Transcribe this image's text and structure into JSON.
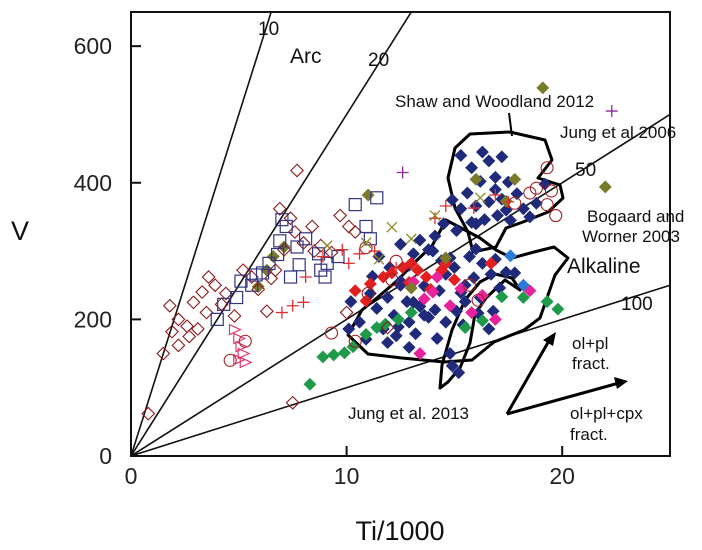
{
  "chart_data": {
    "type": "scatter",
    "title": "",
    "xlabel": "Ti/1000",
    "ylabel": "V",
    "xlim": [
      0,
      25
    ],
    "ylim": [
      0,
      650
    ],
    "x_ticks": [
      0,
      10,
      20
    ],
    "y_ticks": [
      0,
      200,
      400,
      600
    ],
    "grid": false,
    "ratio_lines": [
      {
        "label": "10",
        "ratio": 10
      },
      {
        "label": "20",
        "ratio": 20
      },
      {
        "label": "50",
        "ratio": 50
      },
      {
        "label": "100",
        "ratio": 100
      }
    ],
    "field_labels": [
      "Arc",
      "Alkaline"
    ],
    "annotations": [
      "Shaw and Woodland 2012",
      "Jung et al 2006",
      "Bogaard and",
      "Worner 2003",
      "Jung et al. 2013"
    ],
    "vectors": [
      {
        "label_lines": [
          "ol+pl",
          "fract."
        ]
      },
      {
        "label_lines": [
          "ol+pl+cpx",
          "fract."
        ]
      }
    ],
    "series": [
      {
        "marker": "diamond-filled",
        "color": "#1f2a7a",
        "points": [
          [
            14.5,
            340
          ],
          [
            15.1,
            330
          ],
          [
            15.8,
            342
          ],
          [
            16.4,
            346
          ],
          [
            17.0,
            352
          ],
          [
            17.6,
            345
          ],
          [
            18.2,
            362
          ],
          [
            18.8,
            370
          ],
          [
            19.2,
            398
          ],
          [
            15.3,
            362
          ],
          [
            16.0,
            366
          ],
          [
            16.6,
            372
          ],
          [
            17.2,
            376
          ],
          [
            17.9,
            384
          ],
          [
            16.2,
            402
          ],
          [
            16.9,
            408
          ],
          [
            17.5,
            401
          ],
          [
            16.6,
            432
          ],
          [
            17.2,
            438
          ],
          [
            15.8,
            422
          ],
          [
            15.3,
            440
          ],
          [
            14.9,
            375
          ],
          [
            15.6,
            385
          ],
          [
            16.9,
            390
          ],
          [
            16.3,
            445
          ],
          [
            17.4,
            360
          ],
          [
            16.0,
            340
          ],
          [
            18.5,
            350
          ],
          [
            12.5,
            310
          ],
          [
            13.1,
            296
          ],
          [
            13.8,
            302
          ],
          [
            14.4,
            286
          ],
          [
            15.0,
            276
          ],
          [
            15.7,
            292
          ],
          [
            16.3,
            282
          ],
          [
            13.4,
            316
          ],
          [
            14.1,
            322
          ],
          [
            12.9,
            279
          ],
          [
            11.5,
            292
          ],
          [
            12.0,
            276
          ],
          [
            14.6,
            266
          ],
          [
            15.9,
            261
          ],
          [
            16.7,
            266
          ],
          [
            17.4,
            269
          ],
          [
            12.5,
            256
          ],
          [
            13.6,
            249
          ],
          [
            14.3,
            242
          ],
          [
            15.3,
            239
          ],
          [
            16.2,
            232
          ],
          [
            17.1,
            246
          ],
          [
            11.1,
            238
          ],
          [
            11.9,
            232
          ],
          [
            12.8,
            226
          ],
          [
            13.4,
            219
          ],
          [
            14.1,
            214
          ],
          [
            15.1,
            212
          ],
          [
            16.1,
            209
          ],
          [
            15.4,
            192
          ],
          [
            16.6,
            186
          ],
          [
            14.6,
            196
          ],
          [
            13.8,
            203
          ],
          [
            12.9,
            196
          ],
          [
            12.2,
            206
          ],
          [
            11.4,
            216
          ],
          [
            10.6,
            196
          ],
          [
            10.1,
            186
          ],
          [
            11.7,
            186
          ],
          [
            12.3,
            176
          ],
          [
            13.2,
            179
          ],
          [
            14.2,
            172
          ],
          [
            10.9,
            171
          ],
          [
            11.9,
            166
          ],
          [
            12.9,
            159
          ],
          [
            10.2,
            226
          ],
          [
            14.8,
            150
          ],
          [
            14.9,
            132
          ],
          [
            15.2,
            122
          ],
          [
            12.5,
            250
          ],
          [
            13.1,
            225
          ],
          [
            16.8,
            212
          ],
          [
            11.2,
            263
          ],
          [
            15.5,
            226
          ],
          [
            14.0,
            300
          ],
          [
            15.5,
            250
          ],
          [
            16.9,
            288
          ],
          [
            13.6,
            206
          ],
          [
            17.8,
            268
          ],
          [
            12.4,
            189
          ],
          [
            14.8,
            290
          ],
          [
            16.0,
            303
          ]
        ]
      },
      {
        "marker": "diamond-filled",
        "color": "#e22020",
        "points": [
          [
            10.4,
            242
          ],
          [
            11.1,
            252
          ],
          [
            11.7,
            262
          ],
          [
            12.1,
            268
          ],
          [
            12.6,
            276
          ],
          [
            13.0,
            282
          ],
          [
            13.3,
            272
          ],
          [
            13.7,
            262
          ],
          [
            14.4,
            272
          ],
          [
            15.0,
            258
          ],
          [
            12.9,
            254
          ],
          [
            13.9,
            244
          ],
          [
            14.6,
            282
          ],
          [
            16.7,
            282
          ],
          [
            10.9,
            227
          ]
        ]
      },
      {
        "marker": "diamond-filled",
        "color": "#e8229a",
        "points": [
          [
            13.1,
            255
          ],
          [
            13.6,
            230
          ],
          [
            14.0,
            240
          ],
          [
            14.2,
            262
          ],
          [
            14.8,
            220
          ],
          [
            15.3,
            245
          ],
          [
            15.8,
            210
          ],
          [
            16.3,
            235
          ],
          [
            16.9,
            200
          ],
          [
            18.5,
            242
          ],
          [
            13.4,
            150
          ]
        ]
      },
      {
        "marker": "diamond-filled",
        "color": "#1f9a4a",
        "points": [
          [
            8.3,
            105
          ],
          [
            8.9,
            145
          ],
          [
            9.4,
            148
          ],
          [
            9.9,
            151
          ],
          [
            10.3,
            160
          ],
          [
            10.9,
            178
          ],
          [
            11.4,
            188
          ],
          [
            11.8,
            193
          ],
          [
            12.4,
            200
          ],
          [
            13.0,
            210
          ],
          [
            17.2,
            233
          ],
          [
            18.2,
            232
          ],
          [
            19.3,
            226
          ],
          [
            19.8,
            215
          ],
          [
            16.3,
            198
          ],
          [
            15.5,
            188
          ]
        ]
      },
      {
        "marker": "diamond-filled",
        "color": "#7a7a2a",
        "points": [
          [
            5.9,
            248
          ],
          [
            6.3,
            272
          ],
          [
            6.6,
            292
          ],
          [
            7.1,
            306
          ],
          [
            11.0,
            382
          ],
          [
            13.0,
            246
          ],
          [
            14.6,
            290
          ],
          [
            17.4,
            373
          ],
          [
            19.1,
            539
          ],
          [
            22.0,
            394
          ],
          [
            16.0,
            405
          ],
          [
            17.8,
            405
          ]
        ]
      },
      {
        "marker": "diamond-filled",
        "color": "#2c7bd6",
        "points": [
          [
            17.6,
            293
          ],
          [
            18.2,
            250
          ]
        ]
      },
      {
        "marker": "diamond-open",
        "color": "#8a1a1a",
        "points": [
          [
            0.8,
            62
          ],
          [
            1.5,
            150
          ],
          [
            1.9,
            182
          ],
          [
            2.2,
            200
          ],
          [
            2.6,
            190
          ],
          [
            2.9,
            225
          ],
          [
            3.3,
            240
          ],
          [
            3.6,
            262
          ],
          [
            3.9,
            250
          ],
          [
            4.2,
            222
          ],
          [
            4.4,
            238
          ],
          [
            4.8,
            205
          ],
          [
            5.2,
            272
          ],
          [
            5.6,
            262
          ],
          [
            5.9,
            244
          ],
          [
            6.3,
            212
          ],
          [
            6.7,
            272
          ],
          [
            7.1,
            302
          ],
          [
            7.6,
            328
          ],
          [
            8.0,
            312
          ],
          [
            8.4,
            336
          ],
          [
            8.8,
            308
          ],
          [
            9.3,
            298
          ],
          [
            9.7,
            352
          ],
          [
            10.1,
            336
          ],
          [
            10.4,
            328
          ],
          [
            7.4,
            348
          ],
          [
            6.9,
            362
          ],
          [
            2.2,
            162
          ],
          [
            3.1,
            186
          ],
          [
            2.7,
            175
          ],
          [
            6.5,
            260
          ],
          [
            7.5,
            78
          ],
          [
            8.5,
            300
          ],
          [
            10.0,
            210
          ],
          [
            11.9,
            188
          ],
          [
            1.8,
            220
          ],
          [
            3.5,
            210
          ],
          [
            7.7,
            418
          ]
        ]
      },
      {
        "marker": "square-open",
        "color": "#34347f",
        "points": [
          [
            4.3,
            222
          ],
          [
            4.9,
            232
          ],
          [
            5.1,
            256
          ],
          [
            5.6,
            250
          ],
          [
            6.1,
            268
          ],
          [
            6.4,
            282
          ],
          [
            6.8,
            295
          ],
          [
            6.9,
            315
          ],
          [
            7.2,
            336
          ],
          [
            7.0,
            346
          ],
          [
            7.7,
            306
          ],
          [
            8.1,
            318
          ],
          [
            8.7,
            296
          ],
          [
            9.1,
            282
          ],
          [
            9.6,
            292
          ],
          [
            8.8,
            272
          ],
          [
            10.4,
            368
          ],
          [
            10.9,
            336
          ],
          [
            11.1,
            318
          ],
          [
            5.8,
            265
          ],
          [
            4.0,
            200
          ],
          [
            7.4,
            262
          ],
          [
            7.8,
            280
          ],
          [
            9.0,
            262
          ],
          [
            11.4,
            378
          ]
        ]
      },
      {
        "marker": "circle-open",
        "color": "#a02020",
        "points": [
          [
            4.6,
            140
          ],
          [
            5.3,
            168
          ],
          [
            9.3,
            180
          ],
          [
            10.4,
            168
          ],
          [
            10.9,
            305
          ],
          [
            12.3,
            285
          ],
          [
            12.1,
            258
          ],
          [
            18.8,
            392
          ],
          [
            19.3,
            368
          ],
          [
            19.5,
            388
          ],
          [
            19.7,
            352
          ],
          [
            19.3,
            422
          ],
          [
            15.7,
            250
          ],
          [
            16.1,
            228
          ],
          [
            18.5,
            385
          ],
          [
            17.8,
            370
          ],
          [
            11.0,
            238
          ]
        ]
      },
      {
        "marker": "plus",
        "color": "#e03030",
        "points": [
          [
            8.1,
            262
          ],
          [
            8.9,
            292
          ],
          [
            9.8,
            302
          ],
          [
            10.1,
            282
          ],
          [
            10.6,
            296
          ],
          [
            11.3,
            300
          ],
          [
            7.5,
            220
          ],
          [
            8.0,
            225
          ],
          [
            7.0,
            210
          ],
          [
            15.9,
            363
          ],
          [
            16.9,
            382
          ],
          [
            17.5,
            372
          ],
          [
            14.1,
            348
          ],
          [
            14.6,
            366
          ],
          [
            12.3,
            275
          ]
        ]
      },
      {
        "marker": "plus",
        "color": "#8a2aa0",
        "points": [
          [
            22.3,
            505
          ],
          [
            12.6,
            415
          ]
        ]
      },
      {
        "marker": "cross",
        "color": "#8a8a2a",
        "points": [
          [
            9.1,
            308
          ],
          [
            10.9,
            312
          ],
          [
            12.1,
            335
          ],
          [
            13.0,
            318
          ],
          [
            14.1,
            352
          ],
          [
            11.5,
            288
          ],
          [
            16.2,
            378
          ]
        ]
      },
      {
        "marker": "triangle-right-open",
        "color": "#e02a6a",
        "points": [
          [
            4.8,
            185
          ],
          [
            5.0,
            172
          ],
          [
            5.1,
            160
          ],
          [
            5.2,
            150
          ],
          [
            5.0,
            141
          ],
          [
            5.3,
            137
          ]
        ]
      }
    ]
  }
}
